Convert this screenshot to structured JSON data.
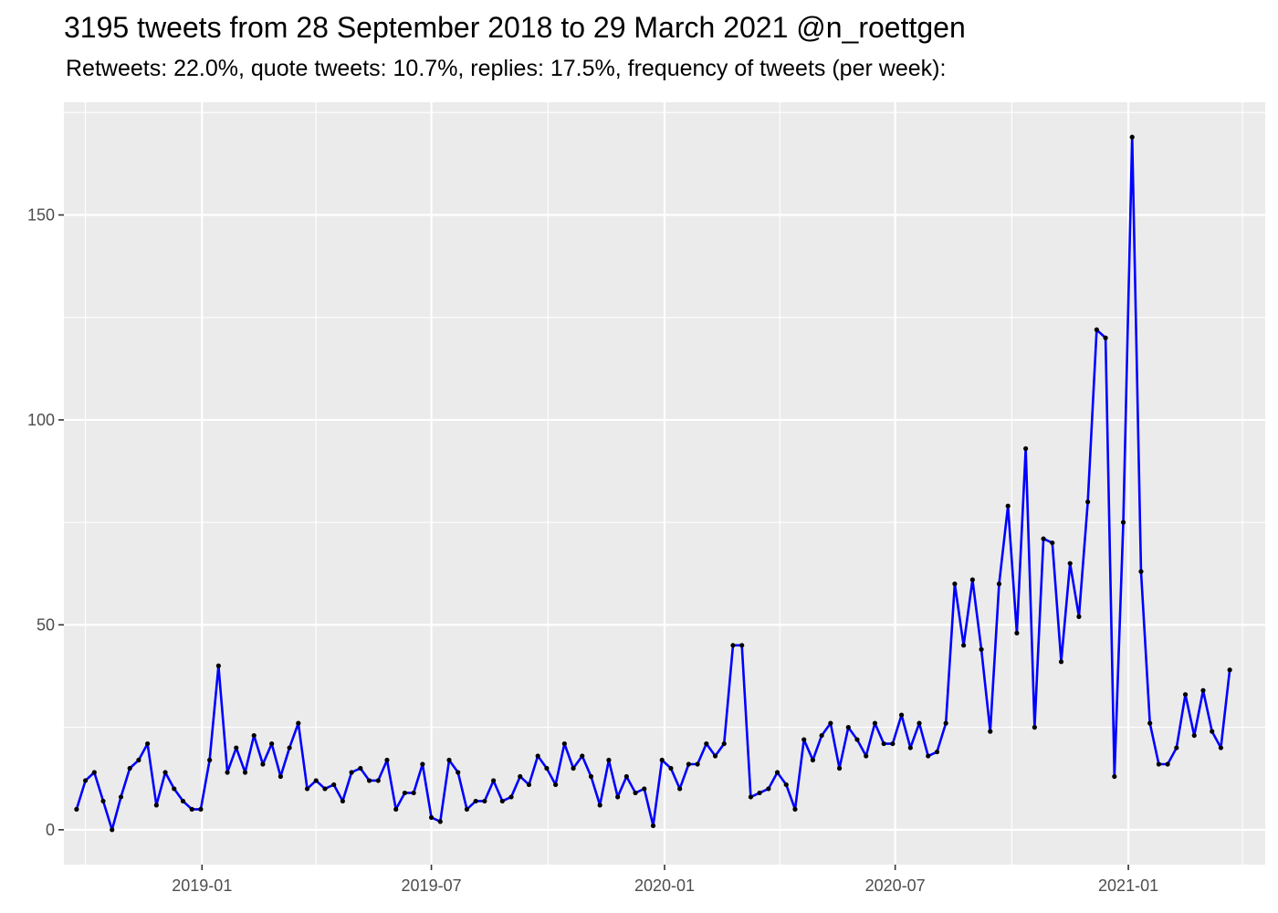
{
  "chart_data": {
    "type": "line",
    "title": "3195 tweets from 28 September 2018 to 29 March 2021 @n_roettgen",
    "subtitle": "Retweets: 22.0%, quote tweets: 10.7%, replies: 17.5%, frequency of tweets (per week):",
    "xlabel": "",
    "ylabel": "",
    "grid": true,
    "line_color": "#0000ff",
    "point_color": "#000000",
    "panel_color": "#ebebeb",
    "x_range": [
      "2018-09-14",
      "2021-04-19"
    ],
    "ylim": [
      -8.5,
      177.5
    ],
    "y_ticks": [
      0,
      50,
      100,
      150
    ],
    "x_ticks": [
      {
        "date": "2019-01-01",
        "label": "2019-01"
      },
      {
        "date": "2019-07-01",
        "label": "2019-07"
      },
      {
        "date": "2020-01-01",
        "label": "2020-01"
      },
      {
        "date": "2020-07-01",
        "label": "2020-07"
      },
      {
        "date": "2021-01-01",
        "label": "2021-01"
      }
    ],
    "x_minor_ticks": [
      "2018-10-01",
      "2019-04-01",
      "2019-10-01",
      "2020-04-01",
      "2020-10-01",
      "2021-04-01"
    ],
    "series": [
      {
        "x_start": "2018-09-24",
        "interval_days": 7,
        "values": [
          5,
          12,
          14,
          7,
          0,
          8,
          15,
          17,
          21,
          6,
          14,
          10,
          7,
          5,
          5,
          17,
          40,
          14,
          20,
          14,
          23,
          16,
          21,
          13,
          20,
          26,
          10,
          12,
          10,
          11,
          7,
          14,
          15,
          12,
          12,
          17,
          5,
          9,
          9,
          16,
          3,
          2,
          17,
          14,
          5,
          7,
          7,
          12,
          7,
          8,
          13,
          11,
          18,
          15,
          11,
          21,
          15,
          18,
          13,
          6,
          17,
          8,
          13,
          9,
          10,
          1,
          17,
          15,
          10,
          16,
          16,
          21,
          18,
          21,
          45,
          45,
          8,
          9,
          10,
          14,
          11,
          5,
          22,
          17,
          23,
          26,
          15,
          25,
          22,
          18,
          26,
          21,
          21,
          28,
          20,
          26,
          18,
          19,
          26,
          60,
          45,
          61,
          44,
          24,
          60,
          79,
          48,
          93,
          25,
          71,
          70,
          41,
          65,
          52,
          80,
          122,
          120,
          13,
          75,
          169,
          63,
          26,
          16,
          16,
          20,
          33,
          23,
          34,
          24,
          20,
          39
        ]
      }
    ]
  }
}
